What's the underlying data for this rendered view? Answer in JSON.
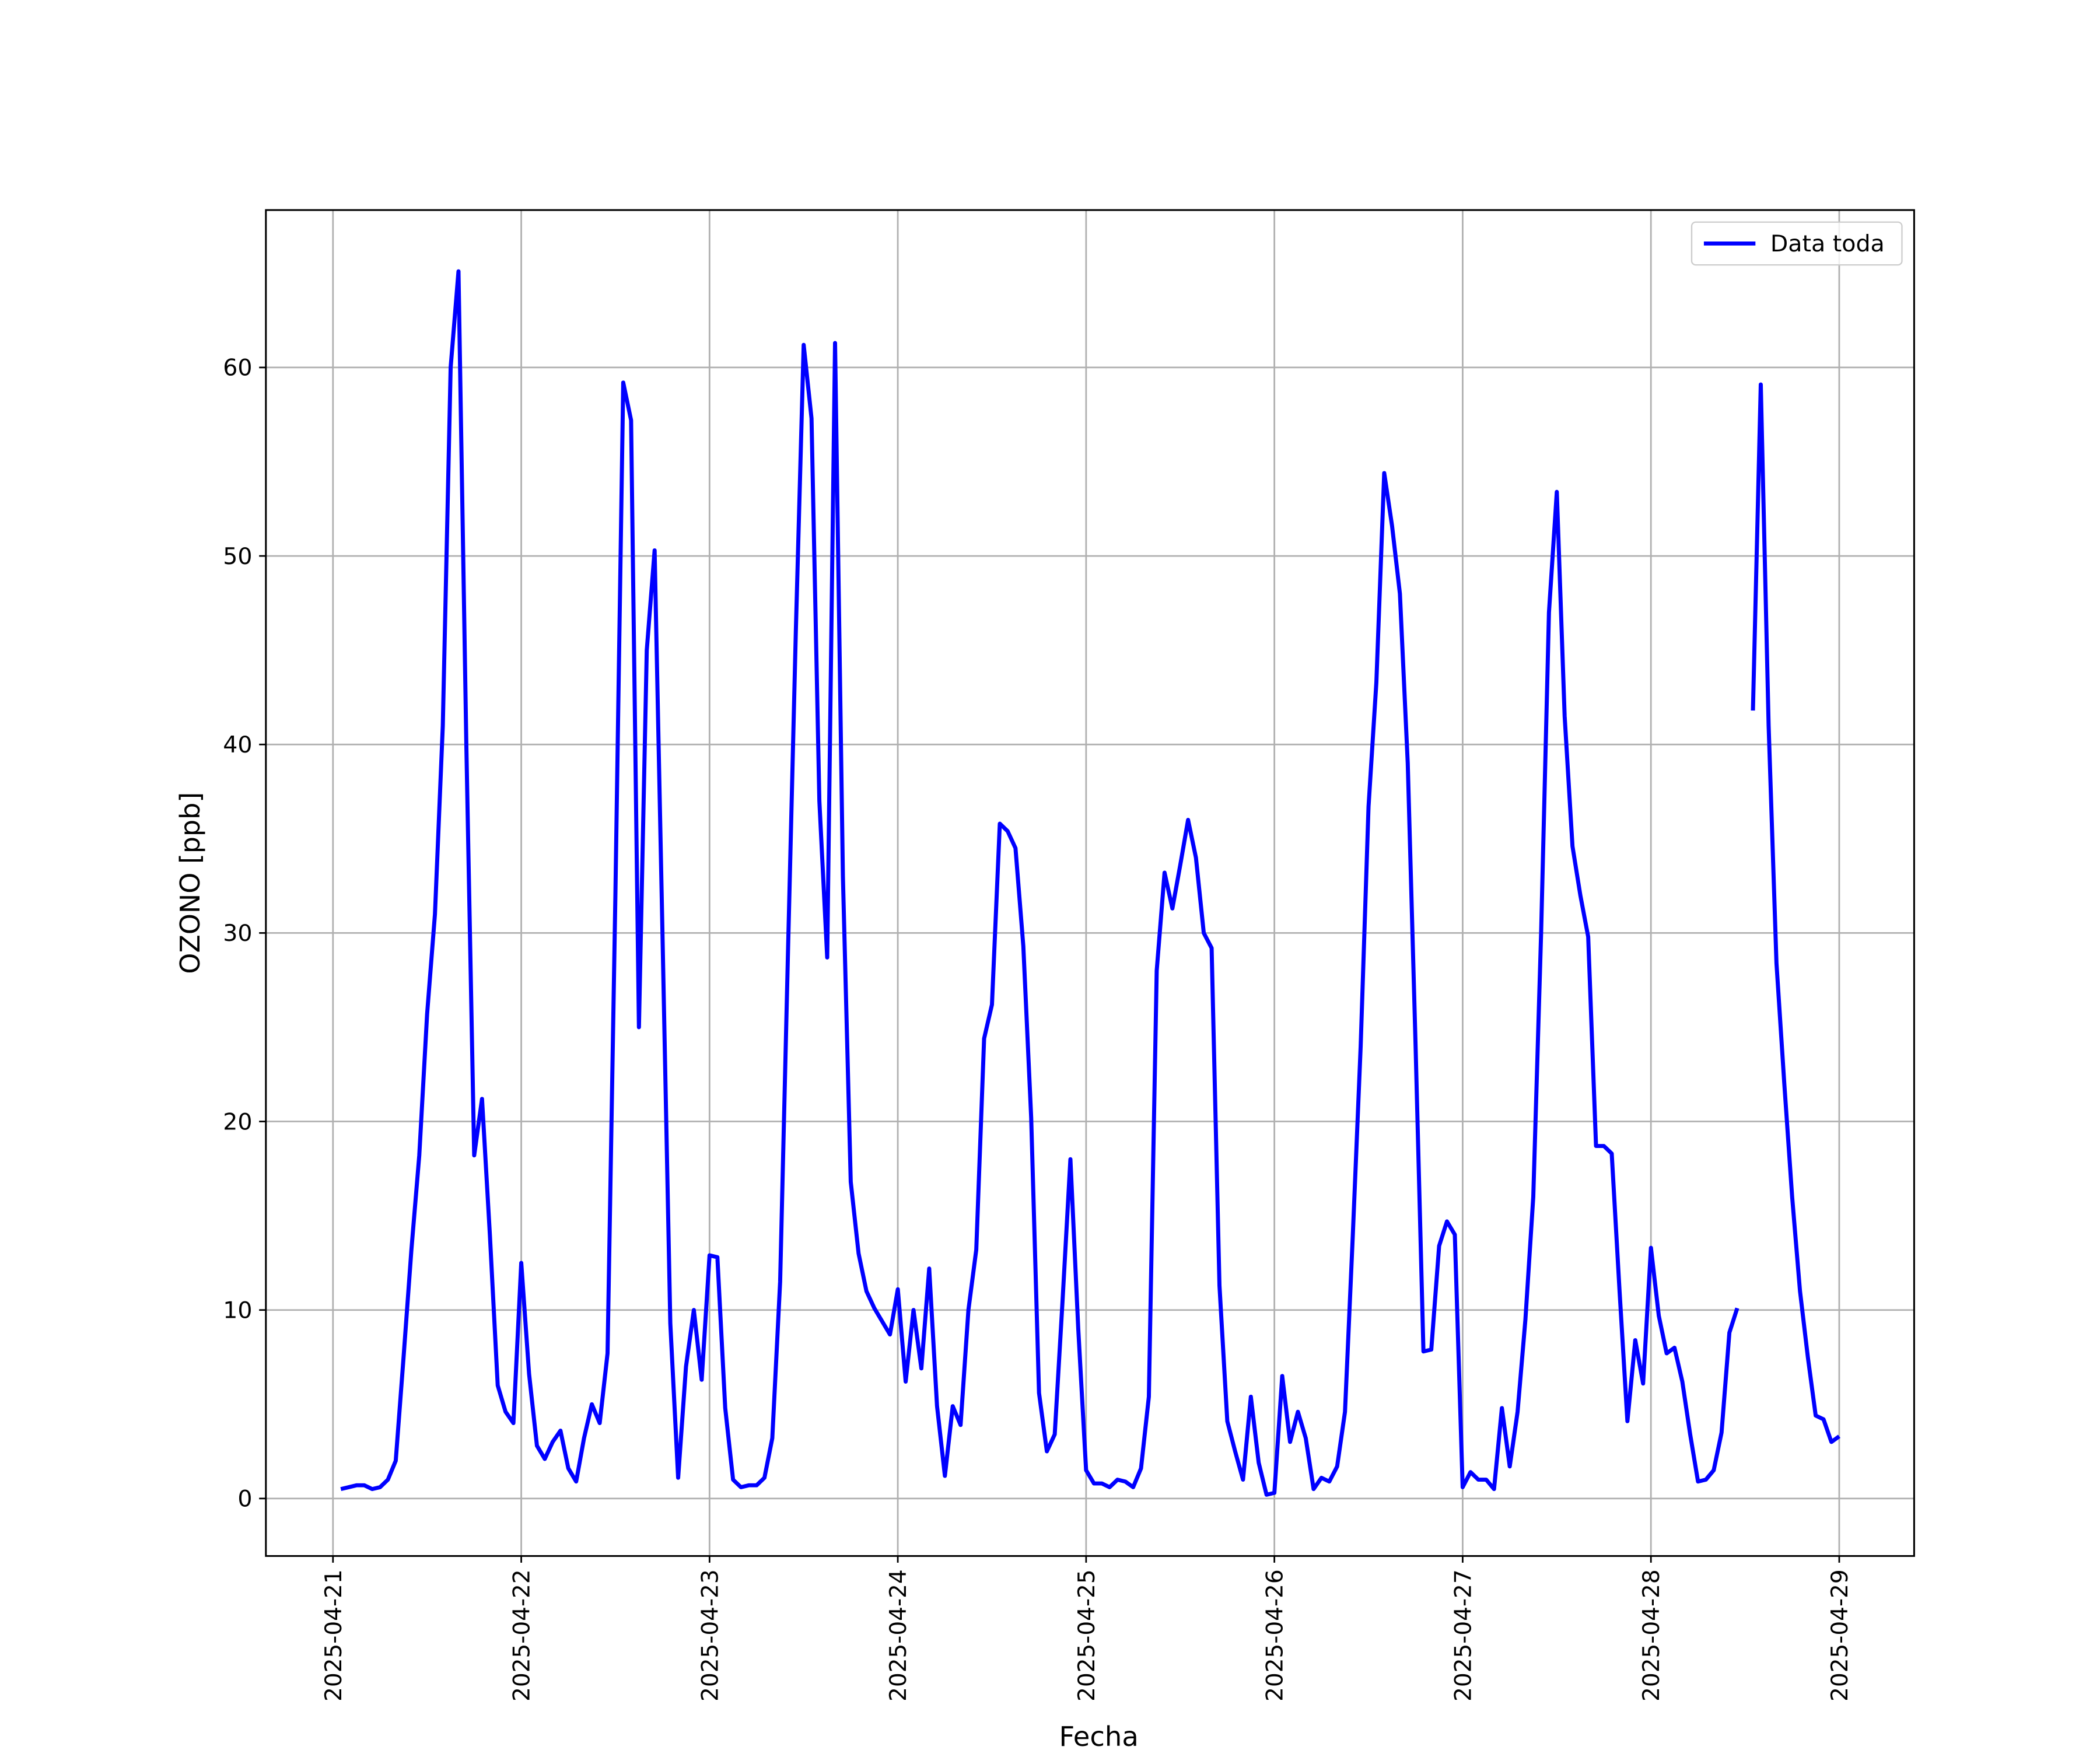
{
  "chart_data": {
    "type": "line",
    "xlabel": "Fecha",
    "ylabel": "OZONO [ppb]",
    "x": [
      1,
      2,
      3,
      4,
      5,
      6,
      7,
      8,
      9,
      10,
      11,
      12,
      13,
      14,
      15,
      16,
      17,
      18,
      19,
      20,
      21,
      22,
      23,
      24,
      25,
      26,
      27,
      28,
      29,
      30,
      31,
      32,
      33,
      34,
      35,
      36,
      37,
      38,
      39,
      40,
      41,
      42,
      43,
      44,
      45,
      46,
      47,
      48,
      49,
      50,
      51,
      52,
      53,
      54,
      55,
      56,
      57,
      58,
      59,
      60,
      61,
      62,
      63,
      64,
      65,
      66,
      67,
      68,
      69,
      70,
      71,
      72,
      73,
      74,
      75,
      76,
      77,
      78,
      79,
      80,
      81,
      82,
      83,
      84,
      85,
      86,
      87,
      88,
      89,
      90,
      91,
      92,
      93,
      94,
      95,
      96,
      97,
      98,
      99,
      100,
      101,
      102,
      103,
      104,
      105,
      106,
      107,
      108,
      109,
      110,
      111,
      112,
      113,
      114,
      115,
      116,
      117,
      118,
      119,
      120,
      121,
      122,
      123,
      124,
      125,
      126,
      127,
      128,
      129,
      130,
      131,
      132,
      133,
      134,
      135,
      136,
      137,
      138,
      139,
      140,
      141,
      142,
      143,
      144,
      145,
      146,
      147,
      148,
      149,
      150,
      151,
      152,
      153,
      154,
      155,
      156,
      157,
      158,
      159,
      160,
      161,
      162,
      163,
      164,
      165,
      166,
      167,
      168,
      169,
      170,
      171,
      172,
      173,
      174,
      175,
      176,
      177,
      178,
      179,
      180,
      181,
      182,
      183,
      184,
      185,
      186,
      187,
      188,
      189,
      190,
      191,
      192
    ],
    "series": [
      {
        "name": "Data toda",
        "color": "#0000ff",
        "values": [
          0.5,
          0.6,
          0.7,
          0.7,
          0.5,
          0.6,
          1.0,
          2.0,
          7.5,
          13.2,
          18.2,
          25.7,
          31,
          41,
          60,
          65.1,
          40,
          18.2,
          21.2,
          14,
          6,
          4.6,
          4.0,
          12.5,
          6.6,
          2.8,
          2.1,
          3.0,
          3.6,
          1.6,
          0.9,
          3.2,
          5.0,
          4.0,
          7.7,
          32,
          59.2,
          57.2,
          25,
          45,
          50.3,
          30,
          9.3,
          1.1,
          7,
          10,
          6.3,
          12.9,
          12.8,
          4.8,
          1.0,
          0.6,
          0.7,
          0.7,
          1.1,
          3.2,
          11.5,
          29,
          46,
          61.2,
          57.3,
          37,
          28.7,
          61.3,
          33,
          16.8,
          13,
          11,
          10.1,
          9.4,
          8.7,
          11.1,
          6.2,
          10,
          6.9,
          12.2,
          4.9,
          1.2,
          4.9,
          3.9,
          10,
          13.2,
          24.4,
          26.2,
          35.8,
          35.4,
          34.5,
          29.3,
          20.2,
          5.6,
          2.5,
          3.4,
          10.5,
          18,
          9,
          1.5,
          0.8,
          0.8,
          0.6,
          1.0,
          0.9,
          0.6,
          1.6,
          5.4,
          28,
          33.2,
          31.3,
          33.6,
          36,
          34,
          30,
          29.2,
          11.3,
          4.1,
          2.5,
          1.0,
          5.4,
          1.9,
          0.2,
          0.3,
          6.5,
          3.0,
          4.6,
          3.2,
          0.5,
          1.1,
          0.9,
          1.7,
          4.6,
          14,
          24,
          36.7,
          43.3,
          54.4,
          51.6,
          48,
          39,
          24,
          7.8,
          7.9,
          13.4,
          14.7,
          14,
          0.6,
          1.4,
          1.0,
          1.0,
          0.5,
          4.8,
          1.7,
          4.6,
          9.5,
          16,
          30,
          47,
          53.4,
          41.5,
          34.6,
          32,
          29.8,
          18.7,
          18.7,
          18.3,
          11,
          4.1,
          8.4,
          6.1,
          13.3,
          9.7,
          7.7,
          8.0,
          6.2,
          3.4,
          0.9,
          1.0,
          1.5,
          3.5,
          8.8,
          10.1,
          null,
          41.8,
          59.1,
          41,
          28.4,
          22,
          16,
          11,
          7.5,
          4.4,
          4.2,
          3.0,
          3.3
        ]
      }
    ],
    "xlim": [
      -8.55,
      201.55
    ],
    "ylim": [
      -3.05,
      68.35
    ],
    "xticks": [
      {
        "value": 0,
        "label": "2025-04-21"
      },
      {
        "value": 24,
        "label": "2025-04-22"
      },
      {
        "value": 48,
        "label": "2025-04-23"
      },
      {
        "value": 72,
        "label": "2025-04-24"
      },
      {
        "value": 96,
        "label": "2025-04-25"
      },
      {
        "value": 120,
        "label": "2025-04-26"
      },
      {
        "value": 144,
        "label": "2025-04-27"
      },
      {
        "value": 168,
        "label": "2025-04-28"
      },
      {
        "value": 192,
        "label": "2025-04-29"
      }
    ],
    "yticks": [
      0,
      10,
      20,
      30,
      40,
      50,
      60
    ],
    "grid": true,
    "legend": "upper right"
  }
}
